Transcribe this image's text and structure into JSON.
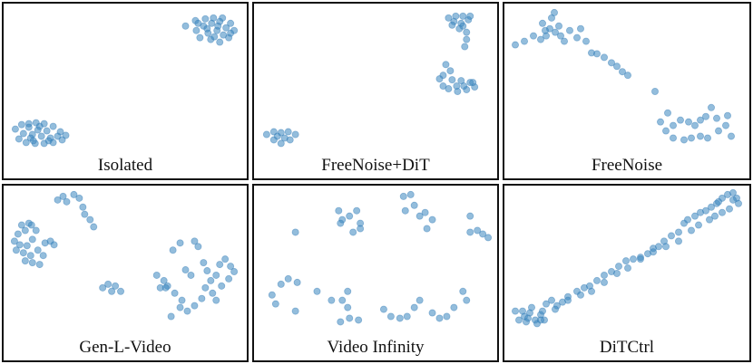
{
  "chart_data": [
    {
      "type": "scatter",
      "title": "Isolated",
      "xlim": [
        0,
        270
      ],
      "ylim": [
        0,
        195
      ],
      "points": [
        [
          13,
          140
        ],
        [
          20,
          135
        ],
        [
          28,
          134
        ],
        [
          36,
          133
        ],
        [
          45,
          134
        ],
        [
          55,
          137
        ],
        [
          63,
          143
        ],
        [
          69,
          147
        ],
        [
          65,
          152
        ],
        [
          55,
          155
        ],
        [
          45,
          156
        ],
        [
          35,
          156
        ],
        [
          25,
          155
        ],
        [
          17,
          151
        ],
        [
          22,
          145
        ],
        [
          32,
          146
        ],
        [
          42,
          148
        ],
        [
          52,
          150
        ],
        [
          38,
          141
        ],
        [
          48,
          142
        ],
        [
          30,
          150
        ],
        [
          60,
          148
        ],
        [
          28,
          138
        ],
        [
          40,
          137
        ],
        [
          33,
          153
        ],
        [
          50,
          153
        ],
        [
          202,
          25
        ],
        [
          213,
          19
        ],
        [
          224,
          17
        ],
        [
          233,
          16
        ],
        [
          243,
          16
        ],
        [
          252,
          22
        ],
        [
          256,
          30
        ],
        [
          250,
          38
        ],
        [
          240,
          43
        ],
        [
          230,
          40
        ],
        [
          218,
          38
        ],
        [
          214,
          30
        ],
        [
          222,
          25
        ],
        [
          231,
          22
        ],
        [
          240,
          20
        ],
        [
          247,
          27
        ],
        [
          237,
          30
        ],
        [
          227,
          33
        ],
        [
          244,
          35
        ],
        [
          234,
          37
        ],
        [
          226,
          28
        ],
        [
          216,
          22
        ],
        [
          252,
          33
        ],
        [
          238,
          25
        ]
      ]
    },
    {
      "type": "scatter",
      "title": "FreeNoise+DiT",
      "xlim": [
        0,
        270
      ],
      "ylim": [
        0,
        195
      ],
      "points": [
        [
          216,
          16
        ],
        [
          224,
          14
        ],
        [
          232,
          14
        ],
        [
          238,
          18
        ],
        [
          230,
          22
        ],
        [
          222,
          20
        ],
        [
          228,
          28
        ],
        [
          236,
          32
        ],
        [
          236,
          40
        ],
        [
          234,
          48
        ],
        [
          232,
          25
        ],
        [
          240,
          14
        ],
        [
          220,
          24
        ],
        [
          213,
          68
        ],
        [
          218,
          75
        ],
        [
          210,
          80
        ],
        [
          220,
          85
        ],
        [
          230,
          86
        ],
        [
          240,
          88
        ],
        [
          245,
          93
        ],
        [
          236,
          96
        ],
        [
          226,
          98
        ],
        [
          216,
          95
        ],
        [
          206,
          84
        ],
        [
          225,
          92
        ],
        [
          233,
          92
        ],
        [
          243,
          88
        ],
        [
          210,
          92
        ],
        [
          14,
          146
        ],
        [
          22,
          143
        ],
        [
          30,
          144
        ],
        [
          38,
          143
        ],
        [
          46,
          146
        ],
        [
          40,
          152
        ],
        [
          30,
          156
        ],
        [
          22,
          152
        ],
        [
          34,
          150
        ],
        [
          26,
          148
        ]
      ]
    },
    {
      "type": "scatter",
      "title": "FreeNoise",
      "xlim": [
        0,
        270
      ],
      "ylim": [
        0,
        195
      ],
      "points": [
        [
          12,
          46
        ],
        [
          22,
          42
        ],
        [
          32,
          36
        ],
        [
          42,
          22
        ],
        [
          52,
          16
        ],
        [
          50,
          28
        ],
        [
          46,
          36
        ],
        [
          40,
          40
        ],
        [
          56,
          32
        ],
        [
          60,
          25
        ],
        [
          62,
          36
        ],
        [
          66,
          42
        ],
        [
          72,
          30
        ],
        [
          80,
          38
        ],
        [
          84,
          28
        ],
        [
          90,
          42
        ],
        [
          55,
          10
        ],
        [
          45,
          30
        ],
        [
          96,
          55
        ],
        [
          102,
          56
        ],
        [
          110,
          60
        ],
        [
          118,
          66
        ],
        [
          124,
          70
        ],
        [
          130,
          76
        ],
        [
          136,
          80
        ],
        [
          166,
          98
        ],
        [
          172,
          132
        ],
        [
          180,
          122
        ],
        [
          186,
          136
        ],
        [
          194,
          130
        ],
        [
          203,
          132
        ],
        [
          210,
          136
        ],
        [
          216,
          130
        ],
        [
          222,
          126
        ],
        [
          228,
          116
        ],
        [
          234,
          128
        ],
        [
          244,
          136
        ],
        [
          250,
          148
        ],
        [
          246,
          125
        ],
        [
          236,
          142
        ],
        [
          224,
          150
        ],
        [
          216,
          148
        ],
        [
          206,
          150
        ],
        [
          198,
          152
        ],
        [
          186,
          150
        ],
        [
          178,
          142
        ]
      ]
    },
    {
      "type": "scatter",
      "title": "Gen-L-Video",
      "xlim": [
        0,
        270
      ],
      "ylim": [
        0,
        195
      ],
      "points": [
        [
          12,
          62
        ],
        [
          16,
          54
        ],
        [
          24,
          50
        ],
        [
          31,
          44
        ],
        [
          36,
          50
        ],
        [
          32,
          60
        ],
        [
          26,
          67
        ],
        [
          18,
          66
        ],
        [
          14,
          72
        ],
        [
          22,
          75
        ],
        [
          30,
          78
        ],
        [
          38,
          72
        ],
        [
          46,
          64
        ],
        [
          52,
          62
        ],
        [
          44,
          78
        ],
        [
          40,
          88
        ],
        [
          32,
          86
        ],
        [
          24,
          84
        ],
        [
          56,
          66
        ],
        [
          20,
          44
        ],
        [
          28,
          42
        ],
        [
          60,
          16
        ],
        [
          66,
          12
        ],
        [
          70,
          18
        ],
        [
          78,
          10
        ],
        [
          84,
          14
        ],
        [
          88,
          24
        ],
        [
          90,
          32
        ],
        [
          96,
          38
        ],
        [
          100,
          46
        ],
        [
          110,
          114
        ],
        [
          116,
          110
        ],
        [
          124,
          112
        ],
        [
          130,
          118
        ],
        [
          120,
          118
        ],
        [
          170,
          100
        ],
        [
          178,
          106
        ],
        [
          182,
          112
        ],
        [
          188,
          72
        ],
        [
          196,
          64
        ],
        [
          202,
          94
        ],
        [
          208,
          100
        ],
        [
          212,
          62
        ],
        [
          216,
          68
        ],
        [
          222,
          86
        ],
        [
          226,
          95
        ],
        [
          230,
          106
        ],
        [
          236,
          100
        ],
        [
          240,
          88
        ],
        [
          246,
          82
        ],
        [
          252,
          90
        ],
        [
          250,
          104
        ],
        [
          242,
          112
        ],
        [
          232,
          120
        ],
        [
          220,
          126
        ],
        [
          212,
          134
        ],
        [
          204,
          140
        ],
        [
          198,
          128
        ],
        [
          190,
          120
        ],
        [
          180,
          114
        ],
        [
          174,
          114
        ],
        [
          186,
          146
        ],
        [
          196,
          136
        ],
        [
          224,
          114
        ],
        [
          236,
          128
        ],
        [
          256,
          96
        ]
      ]
    },
    {
      "type": "scatter",
      "title": "Video Infinity",
      "xlim": [
        0,
        270
      ],
      "ylim": [
        0,
        195
      ],
      "points": [
        [
          94,
          28
        ],
        [
          98,
          38
        ],
        [
          106,
          34
        ],
        [
          114,
          28
        ],
        [
          118,
          42
        ],
        [
          118,
          48
        ],
        [
          110,
          52
        ],
        [
          96,
          42
        ],
        [
          46,
          52
        ],
        [
          166,
          12
        ],
        [
          174,
          10
        ],
        [
          178,
          22
        ],
        [
          168,
          28
        ],
        [
          184,
          34
        ],
        [
          190,
          30
        ],
        [
          198,
          38
        ],
        [
          192,
          48
        ],
        [
          240,
          34
        ],
        [
          240,
          52
        ],
        [
          248,
          50
        ],
        [
          254,
          54
        ],
        [
          260,
          58
        ],
        [
          20,
          122
        ],
        [
          30,
          110
        ],
        [
          38,
          104
        ],
        [
          48,
          108
        ],
        [
          70,
          118
        ],
        [
          86,
          128
        ],
        [
          104,
          118
        ],
        [
          104,
          136
        ],
        [
          106,
          148
        ],
        [
          96,
          152
        ],
        [
          98,
          128
        ],
        [
          116,
          150
        ],
        [
          46,
          140
        ],
        [
          24,
          132
        ],
        [
          144,
          138
        ],
        [
          152,
          146
        ],
        [
          162,
          148
        ],
        [
          170,
          146
        ],
        [
          178,
          136
        ],
        [
          184,
          128
        ],
        [
          198,
          142
        ],
        [
          206,
          148
        ],
        [
          214,
          146
        ],
        [
          222,
          136
        ],
        [
          232,
          118
        ],
        [
          236,
          128
        ]
      ]
    },
    {
      "type": "scatter",
      "title": "DiTCtrl",
      "xlim": [
        0,
        270
      ],
      "ylim": [
        0,
        195
      ],
      "points": [
        [
          12,
          140
        ],
        [
          16,
          150
        ],
        [
          22,
          146
        ],
        [
          28,
          142
        ],
        [
          34,
          150
        ],
        [
          40,
          144
        ],
        [
          46,
          132
        ],
        [
          52,
          128
        ],
        [
          58,
          134
        ],
        [
          64,
          130
        ],
        [
          70,
          124
        ],
        [
          80,
          118
        ],
        [
          88,
          114
        ],
        [
          94,
          112
        ],
        [
          102,
          106
        ],
        [
          110,
          100
        ],
        [
          118,
          96
        ],
        [
          126,
          90
        ],
        [
          134,
          84
        ],
        [
          142,
          82
        ],
        [
          150,
          80
        ],
        [
          158,
          76
        ],
        [
          164,
          70
        ],
        [
          170,
          68
        ],
        [
          176,
          62
        ],
        [
          184,
          56
        ],
        [
          192,
          52
        ],
        [
          198,
          42
        ],
        [
          202,
          38
        ],
        [
          210,
          34
        ],
        [
          216,
          30
        ],
        [
          222,
          28
        ],
        [
          228,
          24
        ],
        [
          234,
          20
        ],
        [
          240,
          14
        ],
        [
          246,
          10
        ],
        [
          252,
          8
        ],
        [
          256,
          14
        ],
        [
          258,
          20
        ],
        [
          248,
          26
        ],
        [
          240,
          30
        ],
        [
          232,
          34
        ],
        [
          226,
          38
        ],
        [
          214,
          44
        ],
        [
          206,
          50
        ],
        [
          192,
          62
        ],
        [
          178,
          68
        ],
        [
          164,
          74
        ],
        [
          150,
          82
        ],
        [
          136,
          92
        ],
        [
          124,
          98
        ],
        [
          110,
          108
        ],
        [
          96,
          118
        ],
        [
          84,
          122
        ],
        [
          70,
          128
        ],
        [
          56,
          138
        ],
        [
          42,
          140
        ],
        [
          30,
          136
        ],
        [
          20,
          140
        ],
        [
          24,
          152
        ],
        [
          36,
          154
        ],
        [
          44,
          150
        ],
        [
          26,
          148
        ],
        [
          40,
          150
        ],
        [
          252,
          16
        ],
        [
          236,
          18
        ]
      ]
    }
  ]
}
